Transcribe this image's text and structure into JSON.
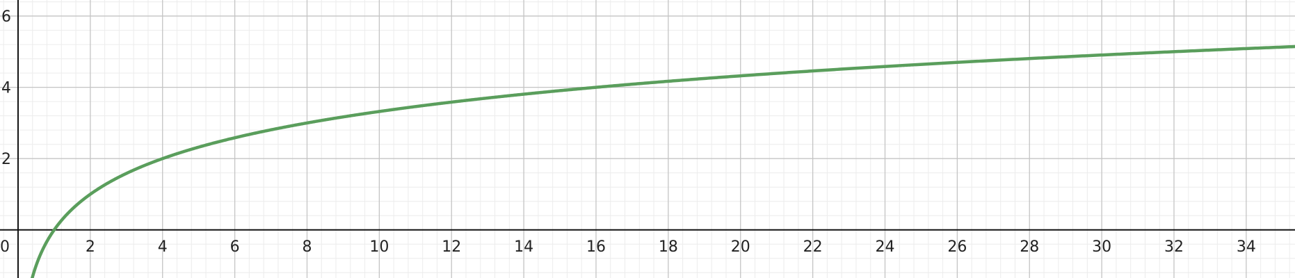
{
  "chart_data": {
    "type": "line",
    "function": "log2(x)",
    "xlim": [
      -0.5,
      35.35
    ],
    "ylim": [
      -1.35,
      6.45
    ],
    "x_ticks": [
      2,
      4,
      6,
      8,
      10,
      12,
      14,
      16,
      18,
      20,
      22,
      24,
      26,
      28,
      30,
      32,
      34
    ],
    "x_tick_labels": [
      "2",
      "4",
      "6",
      "8",
      "10",
      "12",
      "14",
      "16",
      "18",
      "20",
      "22",
      "24",
      "26",
      "28",
      "30",
      "32",
      "34"
    ],
    "y_ticks": [
      2,
      4,
      6
    ],
    "y_tick_labels": [
      "2",
      "4",
      "6"
    ],
    "origin_label": "0",
    "grid": true,
    "series": [
      {
        "color": "#5a9e5c",
        "points": [
          {
            "x": 1,
            "y": 0
          },
          {
            "x": 2,
            "y": 1
          },
          {
            "x": 4,
            "y": 2
          },
          {
            "x": 8,
            "y": 3
          },
          {
            "x": 16,
            "y": 4
          },
          {
            "x": 32,
            "y": 5
          }
        ]
      }
    ]
  },
  "colors": {
    "background": "#ffffff",
    "grid_major": "#c4c4c4",
    "grid_minor": "#ececec",
    "axis": "#111111",
    "curve": "#5a9e5c"
  }
}
